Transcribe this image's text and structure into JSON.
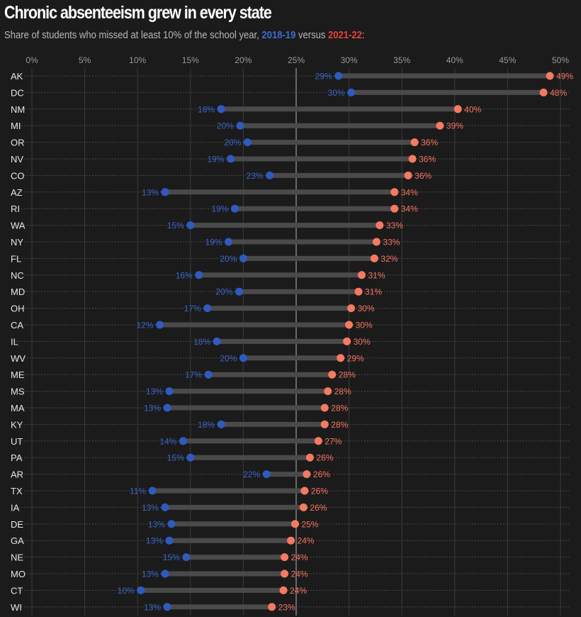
{
  "title": "Chronic absenteeism grew in every state",
  "subtitle": {
    "prefix": "Share of students who missed at least 10% of the school year, ",
    "year1": "2018-19",
    "middle": " versus ",
    "year2": "2021-22",
    "suffix": ":"
  },
  "colors": {
    "year1": "#2f5bbf",
    "year2": "#f57a62",
    "connector": "#4a4a4a",
    "background": "#1b1b1b"
  },
  "chart_data": {
    "type": "dumbbell",
    "title": "Chronic absenteeism grew in every state",
    "xlim": [
      0,
      50
    ],
    "xticks": [
      0,
      5,
      10,
      15,
      20,
      25,
      30,
      35,
      40,
      45,
      50
    ],
    "xtick_labels": [
      "0%",
      "5%",
      "10%",
      "15%",
      "20%",
      "25%",
      "30%",
      "35%",
      "40%",
      "45%",
      "50%"
    ],
    "grid": true,
    "series": [
      {
        "name": "2018-19",
        "color": "#2f5bbf"
      },
      {
        "name": "2021-22",
        "color": "#f57a62"
      }
    ],
    "rows": [
      {
        "state": "AK",
        "v1": 29.0,
        "v2": 49.0,
        "l1": "29%",
        "l2": "49%"
      },
      {
        "state": "DC",
        "v1": 30.2,
        "v2": 48.4,
        "l1": "30%",
        "l2": "48%"
      },
      {
        "state": "NM",
        "v1": 17.9,
        "v2": 40.3,
        "l1": "18%",
        "l2": "40%"
      },
      {
        "state": "MI",
        "v1": 19.7,
        "v2": 38.6,
        "l1": "20%",
        "l2": "39%"
      },
      {
        "state": "OR",
        "v1": 20.4,
        "v2": 36.2,
        "l1": "20%",
        "l2": "36%"
      },
      {
        "state": "NV",
        "v1": 18.8,
        "v2": 36.0,
        "l1": "19%",
        "l2": "36%"
      },
      {
        "state": "CO",
        "v1": 22.5,
        "v2": 35.6,
        "l1": "23%",
        "l2": "36%"
      },
      {
        "state": "AZ",
        "v1": 12.6,
        "v2": 34.3,
        "l1": "13%",
        "l2": "34%"
      },
      {
        "state": "RI",
        "v1": 19.2,
        "v2": 34.3,
        "l1": "19%",
        "l2": "34%"
      },
      {
        "state": "WA",
        "v1": 15.0,
        "v2": 32.9,
        "l1": "15%",
        "l2": "33%"
      },
      {
        "state": "NY",
        "v1": 18.6,
        "v2": 32.6,
        "l1": "19%",
        "l2": "33%"
      },
      {
        "state": "FL",
        "v1": 20.0,
        "v2": 32.4,
        "l1": "20%",
        "l2": "32%"
      },
      {
        "state": "NC",
        "v1": 15.8,
        "v2": 31.2,
        "l1": "16%",
        "l2": "31%"
      },
      {
        "state": "MD",
        "v1": 19.6,
        "v2": 30.9,
        "l1": "20%",
        "l2": "31%"
      },
      {
        "state": "OH",
        "v1": 16.6,
        "v2": 30.2,
        "l1": "17%",
        "l2": "30%"
      },
      {
        "state": "CA",
        "v1": 12.1,
        "v2": 30.0,
        "l1": "12%",
        "l2": "30%"
      },
      {
        "state": "IL",
        "v1": 17.5,
        "v2": 29.8,
        "l1": "18%",
        "l2": "30%"
      },
      {
        "state": "WV",
        "v1": 20.0,
        "v2": 29.2,
        "l1": "20%",
        "l2": "29%"
      },
      {
        "state": "ME",
        "v1": 16.7,
        "v2": 28.4,
        "l1": "17%",
        "l2": "28%"
      },
      {
        "state": "MS",
        "v1": 13.0,
        "v2": 28.0,
        "l1": "13%",
        "l2": "28%"
      },
      {
        "state": "MA",
        "v1": 12.8,
        "v2": 27.7,
        "l1": "13%",
        "l2": "28%"
      },
      {
        "state": "KY",
        "v1": 17.9,
        "v2": 27.7,
        "l1": "18%",
        "l2": "28%"
      },
      {
        "state": "UT",
        "v1": 14.3,
        "v2": 27.1,
        "l1": "14%",
        "l2": "27%"
      },
      {
        "state": "PA",
        "v1": 15.0,
        "v2": 26.3,
        "l1": "15%",
        "l2": "26%"
      },
      {
        "state": "AR",
        "v1": 22.2,
        "v2": 26.0,
        "l1": "22%",
        "l2": "26%"
      },
      {
        "state": "TX",
        "v1": 11.4,
        "v2": 25.8,
        "l1": "11%",
        "l2": "26%"
      },
      {
        "state": "IA",
        "v1": 12.6,
        "v2": 25.7,
        "l1": "13%",
        "l2": "26%"
      },
      {
        "state": "DE",
        "v1": 13.2,
        "v2": 24.9,
        "l1": "13%",
        "l2": "25%"
      },
      {
        "state": "GA",
        "v1": 13.0,
        "v2": 24.5,
        "l1": "13%",
        "l2": "24%"
      },
      {
        "state": "NE",
        "v1": 14.6,
        "v2": 23.9,
        "l1": "15%",
        "l2": "24%"
      },
      {
        "state": "MO",
        "v1": 12.6,
        "v2": 23.9,
        "l1": "13%",
        "l2": "24%"
      },
      {
        "state": "CT",
        "v1": 10.3,
        "v2": 23.8,
        "l1": "10%",
        "l2": "24%"
      },
      {
        "state": "WI",
        "v1": 12.8,
        "v2": 22.7,
        "l1": "13%",
        "l2": "23%"
      }
    ]
  }
}
